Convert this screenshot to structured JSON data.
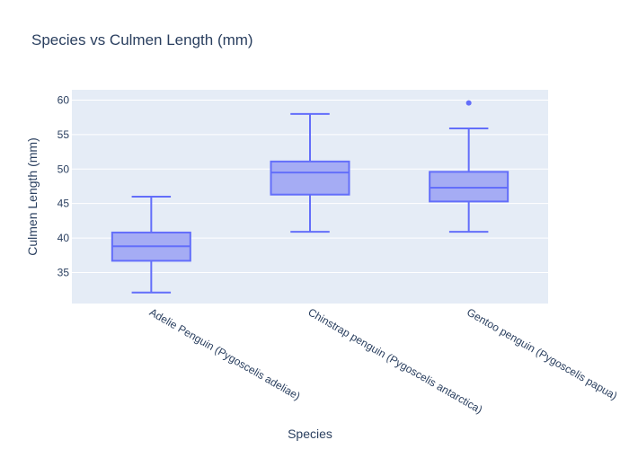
{
  "chart_data": {
    "type": "box",
    "title": "Species vs Culmen Length (mm)",
    "xlabel": "Species",
    "ylabel": "Culmen Length (mm)",
    "ylim": [
      30.5,
      61.5
    ],
    "yticks": [
      35,
      40,
      45,
      50,
      55,
      60
    ],
    "grid": true,
    "colors": {
      "box_fill": "#a5acf4",
      "box_line": "#636efa",
      "plot_bg": "#e5ecf6",
      "grid": "#ffffff",
      "text": "#2a3f5f"
    },
    "categories": [
      "Adelie Penguin (Pygoscelis adeliae)",
      "Chinstrap penguin (Pygoscelis antarctica)",
      "Gentoo penguin (Pygoscelis papua)"
    ],
    "boxes": [
      {
        "category": "Adelie Penguin (Pygoscelis adeliae)",
        "min": 32.1,
        "q1": 36.7,
        "median": 38.8,
        "q3": 40.8,
        "max": 46.0,
        "outliers": []
      },
      {
        "category": "Chinstrap penguin (Pygoscelis antarctica)",
        "min": 40.9,
        "q1": 46.3,
        "median": 49.5,
        "q3": 51.1,
        "max": 58.0,
        "outliers": []
      },
      {
        "category": "Gentoo penguin (Pygoscelis papua)",
        "min": 40.9,
        "q1": 45.3,
        "median": 47.3,
        "q3": 49.6,
        "max": 55.9,
        "outliers": [
          59.6
        ]
      }
    ]
  }
}
